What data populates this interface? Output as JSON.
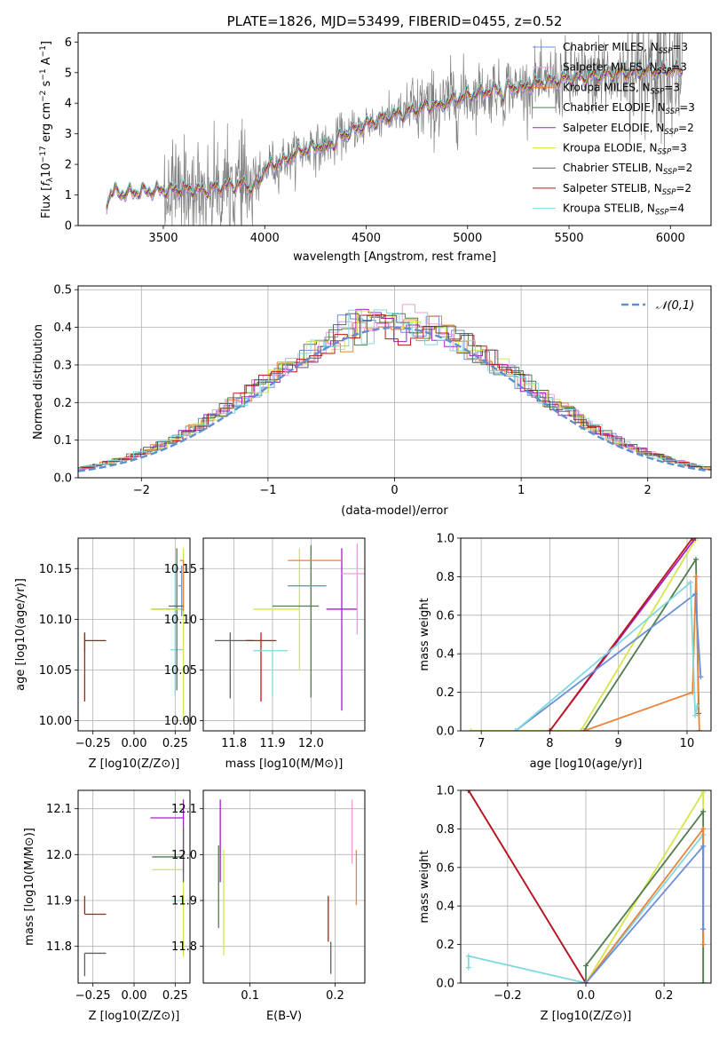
{
  "colors": {
    "Chabrier MILES": "#6a8fd8",
    "Salpeter MILES": "#e8a0e0",
    "Kroupa MILES": "#e8843a",
    "Chabrier ELODIE": "#4f7d4f",
    "Salpeter ELODIE": "#a020c0",
    "Kroupa ELODIE": "#d4e64a",
    "Chabrier STELIB": "#606060",
    "Salpeter STELIB": "#b81818",
    "Kroupa STELIB": "#7fd8e0"
  },
  "chart_data": [
    {
      "id": "spectrum",
      "type": "line",
      "title": "PLATE=1826, MJD=53499, FIBERID=0455, z=0.52",
      "xlabel": "wavelength [Angstrom, rest frame]",
      "ylabel": "Flux [f_λ 10^-17 erg cm^-2 s^-1 A^-1]",
      "xlim": [
        3080,
        6200
      ],
      "ylim": [
        0,
        6.3
      ],
      "xticks": [
        3500,
        4000,
        4500,
        5000,
        5500,
        6000
      ],
      "yticks": [
        0,
        1,
        2,
        3,
        4,
        5,
        6
      ],
      "grid": false,
      "legend_position": "top-right",
      "data_color": "#808080",
      "data_continuum": {
        "x": [
          3220,
          3240,
          3300,
          3400,
          3500,
          3600,
          3700,
          3800,
          3900,
          3950,
          4000,
          4050,
          4100,
          4200,
          4300,
          4400,
          4500,
          4600,
          4700,
          4800,
          4900,
          5000,
          5100,
          5200,
          5300,
          5400,
          5500,
          5600,
          5700,
          5800,
          5900,
          6000,
          6060
        ],
        "y": [
          0.65,
          1.12,
          1.05,
          1.12,
          1.15,
          1.2,
          1.15,
          1.3,
          1.35,
          1.4,
          1.85,
          2.0,
          2.2,
          2.5,
          2.65,
          3.0,
          3.3,
          3.55,
          3.7,
          3.9,
          4.05,
          4.25,
          4.4,
          4.5,
          4.6,
          4.7,
          4.8,
          4.85,
          4.95,
          5.0,
          5.05,
          5.1,
          5.1
        ]
      },
      "series": [
        {
          "name": "Chabrier MILES",
          "label_main": "Chabrier MILES, N",
          "label_sub": "SSP",
          "label_end": "=3"
        },
        {
          "name": "Salpeter MILES",
          "label_main": "Salpeter MILES, N",
          "label_sub": "SSP",
          "label_end": "=3"
        },
        {
          "name": "Kroupa MILES",
          "label_main": "Kroupa MILES, N",
          "label_sub": "SSP",
          "label_end": "=3"
        },
        {
          "name": "Chabrier ELODIE",
          "label_main": "Chabrier ELODIE, N",
          "label_sub": "SSP",
          "label_end": "=3"
        },
        {
          "name": "Salpeter ELODIE",
          "label_main": "Salpeter ELODIE, N",
          "label_sub": "SSP",
          "label_end": "=2"
        },
        {
          "name": "Kroupa ELODIE",
          "label_main": "Kroupa ELODIE, N",
          "label_sub": "SSP",
          "label_end": "=3"
        },
        {
          "name": "Chabrier STELIB",
          "label_main": "Chabrier STELIB, N",
          "label_sub": "SSP",
          "label_end": "=2"
        },
        {
          "name": "Salpeter STELIB",
          "label_main": "Salpeter STELIB, N",
          "label_sub": "SSP",
          "label_end": "=2"
        },
        {
          "name": "Kroupa STELIB",
          "label_main": "Kroupa STELIB, N",
          "label_sub": "SSP",
          "label_end": "=4"
        }
      ]
    },
    {
      "id": "residuals",
      "type": "step",
      "xlabel": "(data-model)/error",
      "ylabel": "Normed distribution",
      "xlim": [
        -2.5,
        2.5
      ],
      "ylim": [
        0,
        0.51
      ],
      "xticks": [
        -2,
        -1,
        0,
        1,
        2
      ],
      "yticks": [
        0.0,
        0.1,
        0.2,
        0.3,
        0.4,
        0.5
      ],
      "grid": true,
      "legend_position": "top-right",
      "reference": {
        "name": "𝒩(0,1)",
        "mean": 0,
        "sigma": 1,
        "color": "#5b8fd4"
      },
      "bin_width": 0.1
    },
    {
      "id": "age-vs-Z",
      "type": "errorbar",
      "xlabel": "Z [log10(Z/Z⊙)]",
      "ylabel": "age [log10(age/yr)]",
      "xlim": [
        -0.34,
        0.34
      ],
      "ylim": [
        9.99,
        10.18
      ],
      "xticks": [
        -0.25,
        0.0,
        0.25
      ],
      "yticks": [
        10.0,
        10.05,
        10.1,
        10.15
      ],
      "grid": true,
      "points": [
        {
          "s": "Chabrier STELIB",
          "x": -0.3,
          "y": 10.08,
          "xerr": [
            0.0,
            0.0
          ],
          "yerr": [
            0.012,
            0.006
          ]
        },
        {
          "s": "Salpeter STELIB",
          "x": -0.3,
          "y": 10.079,
          "xerr": [
            0.0,
            0.13
          ],
          "yerr": [
            0.06,
            0.008
          ]
        },
        {
          "s": "Kroupa STELIB",
          "x": 0.25,
          "y": 10.07,
          "xerr": [
            0.03,
            0.05
          ],
          "yerr": [
            0.045,
            0.085
          ]
        },
        {
          "s": "Chabrier ELODIE",
          "x": 0.26,
          "y": 10.11,
          "xerr": [
            0.15,
            0.04
          ],
          "yerr": [
            0.08,
            0.06
          ]
        },
        {
          "s": "Kroupa ELODIE",
          "x": 0.3,
          "y": 10.11,
          "xerr": [
            0.2,
            0.0
          ],
          "yerr": [
            0.11,
            0.06
          ]
        },
        {
          "s": "Chabrier MILES",
          "x": 0.29,
          "y": 10.133,
          "xerr": [
            0.02,
            0.0
          ],
          "yerr": [
            0.03,
            0.02
          ]
        },
        {
          "s": "Kroupa MILES",
          "x": 0.3,
          "y": 10.158,
          "xerr": [
            0.02,
            0.0
          ],
          "yerr": [
            0.05,
            0.0
          ]
        },
        {
          "s": "Chabrier STELIB",
          "x": 0.3,
          "y": 10.113,
          "xerr": [
            0.09,
            0.0
          ],
          "yerr": [
            0.0,
            0.0
          ]
        }
      ]
    },
    {
      "id": "age-vs-mass",
      "type": "errorbar",
      "xlabel": "mass [log10(M/M⊙)]",
      "ylabel": "",
      "xlim": [
        11.72,
        12.14
      ],
      "ylim": [
        9.99,
        10.18
      ],
      "xticks": [
        11.8,
        11.9,
        12.0
      ],
      "yticks": [
        10.0,
        10.05,
        10.1,
        10.15
      ],
      "grid": true,
      "points": [
        {
          "s": "Chabrier STELIB",
          "x": 11.79,
          "y": 10.079,
          "xerr": [
            0.04,
            0.06
          ],
          "yerr": [
            0.057,
            0.008
          ]
        },
        {
          "s": "Salpeter STELIB",
          "x": 11.87,
          "y": 10.079,
          "xerr": [
            0.04,
            0.04
          ],
          "yerr": [
            0.06,
            0.008
          ]
        },
        {
          "s": "Kroupa STELIB",
          "x": 11.9,
          "y": 10.069,
          "xerr": [
            0.05,
            0.04
          ],
          "yerr": [
            0.045,
            0.0
          ]
        },
        {
          "s": "Kroupa ELODIE",
          "x": 11.97,
          "y": 10.11,
          "xerr": [
            0.12,
            0.0
          ],
          "yerr": [
            0.06,
            0.06
          ]
        },
        {
          "s": "Chabrier ELODIE",
          "x": 12.0,
          "y": 10.113,
          "xerr": [
            0.1,
            0.02
          ],
          "yerr": [
            0.09,
            0.06
          ]
        },
        {
          "s": "Salpeter ELODIE",
          "x": 12.08,
          "y": 10.11,
          "xerr": [
            0.04,
            0.04
          ],
          "yerr": [
            0.1,
            0.06
          ]
        },
        {
          "s": "Chabrier MILES",
          "x": 11.99,
          "y": 10.133,
          "xerr": [
            0.05,
            0.05
          ],
          "yerr": [
            0.0,
            0.0
          ]
        },
        {
          "s": "Kroupa MILES",
          "x": 12.01,
          "y": 10.158,
          "xerr": [
            0.07,
            0.07
          ],
          "yerr": [
            0.0,
            0.0
          ]
        },
        {
          "s": "Salpeter MILES",
          "x": 12.12,
          "y": 10.145,
          "xerr": [
            0.04,
            0.04
          ],
          "yerr": [
            0.06,
            0.03
          ]
        }
      ]
    },
    {
      "id": "weight-vs-age",
      "type": "line",
      "xlabel": "age [log10(age/yr)]",
      "ylabel": "mass weight",
      "xlim": [
        6.7,
        10.35
      ],
      "ylim": [
        0,
        1.0
      ],
      "xticks": [
        7,
        8,
        9,
        10
      ],
      "yticks": [
        0.0,
        0.2,
        0.4,
        0.6,
        0.8,
        1.0
      ],
      "grid": true,
      "series": [
        {
          "s": "Kroupa ELODIE",
          "x": [
            6.85,
            8.45,
            10.12
          ],
          "y": [
            0.0,
            0.0,
            0.99
          ]
        },
        {
          "s": "Salpeter ELODIE",
          "x": [
            8.0,
            10.12
          ],
          "y": [
            0.0,
            1.0
          ]
        },
        {
          "s": "Salpeter STELIB",
          "x": [
            8.0,
            10.08
          ],
          "y": [
            0.0,
            1.0
          ]
        },
        {
          "s": "Chabrier ELODIE",
          "x": [
            8.5,
            10.13,
            10.17
          ],
          "y": [
            0.0,
            0.89,
            0.09
          ]
        },
        {
          "s": "Kroupa MILES",
          "x": [
            8.5,
            10.08,
            10.13,
            10.18
          ],
          "y": [
            0.0,
            0.2,
            0.8,
            0.0
          ]
        },
        {
          "s": "Chabrier MILES",
          "x": [
            7.5,
            10.12,
            10.2
          ],
          "y": [
            0.0,
            0.71,
            0.28
          ]
        },
        {
          "s": "Kroupa STELIB",
          "x": [
            7.5,
            10.05,
            10.12,
            10.15
          ],
          "y": [
            0.0,
            0.77,
            0.08,
            0.13
          ]
        }
      ]
    },
    {
      "id": "mass-vs-Z",
      "type": "errorbar",
      "xlabel": "Z [log10(Z/Z⊙)]",
      "ylabel": "mass [log10(M/M⊙)]",
      "xlim": [
        -0.34,
        0.34
      ],
      "ylim": [
        11.72,
        12.14
      ],
      "xticks": [
        -0.25,
        0.0,
        0.25
      ],
      "yticks": [
        11.8,
        11.9,
        12.0,
        12.1
      ],
      "grid": true,
      "points": [
        {
          "s": "Chabrier STELIB",
          "x": -0.3,
          "y": 11.785,
          "xerr": [
            0.0,
            0.13
          ],
          "yerr": [
            0.05,
            0.0
          ]
        },
        {
          "s": "Salpeter STELIB",
          "x": -0.3,
          "y": 11.87,
          "xerr": [
            0.0,
            0.13
          ],
          "yerr": [
            0.0,
            0.04
          ]
        },
        {
          "s": "Salpeter ELODIE",
          "x": 0.3,
          "y": 12.08,
          "xerr": [
            0.2,
            0.0
          ],
          "yerr": [
            0.12,
            0.04
          ]
        },
        {
          "s": "Chabrier ELODIE",
          "x": 0.26,
          "y": 11.995,
          "xerr": [
            0.15,
            0.04
          ],
          "yerr": [
            0.0,
            0.0
          ]
        },
        {
          "s": "Kroupa ELODIE",
          "x": 0.3,
          "y": 11.967,
          "xerr": [
            0.19,
            0.0
          ],
          "yerr": [
            0.19,
            0.0
          ]
        },
        {
          "s": "Kroupa STELIB",
          "x": 0.25,
          "y": 11.9,
          "xerr": [
            0.02,
            0.05
          ],
          "yerr": [
            0.0,
            0.0
          ]
        },
        {
          "s": "Chabrier STELIB",
          "x": 0.3,
          "y": 12.0,
          "xerr": [
            0.0,
            0.0
          ],
          "yerr": [
            0.06,
            0.06
          ]
        }
      ]
    },
    {
      "id": "mass-vs-EBV",
      "type": "errorbar",
      "xlabel": "E(B-V)",
      "ylabel": "",
      "xlim": [
        0.045,
        0.235
      ],
      "ylim": [
        11.72,
        12.14
      ],
      "xticks": [
        0.1,
        0.2
      ],
      "yticks": [
        11.8,
        11.9,
        12.0,
        12.1
      ],
      "grid": true,
      "points": [
        {
          "s": "Chabrier ELODIE",
          "x": 0.063,
          "y": 11.93,
          "xerr": [
            0.0,
            0.0
          ],
          "yerr": [
            0.09,
            0.09
          ]
        },
        {
          "s": "Salpeter ELODIE",
          "x": 0.065,
          "y": 12.04,
          "xerr": [
            0.0,
            0.0
          ],
          "yerr": [
            0.1,
            0.08
          ]
        },
        {
          "s": "Kroupa ELODIE",
          "x": 0.069,
          "y": 11.9,
          "xerr": [
            0.0,
            0.0
          ],
          "yerr": [
            0.12,
            0.11
          ]
        },
        {
          "s": "Salpeter STELIB",
          "x": 0.192,
          "y": 11.87,
          "xerr": [
            0.0,
            0.0
          ],
          "yerr": [
            0.06,
            0.04
          ]
        },
        {
          "s": "Chabrier STELIB",
          "x": 0.195,
          "y": 11.79,
          "xerr": [
            0.0,
            0.0
          ],
          "yerr": [
            0.05,
            0.02
          ]
        },
        {
          "s": "Salpeter MILES",
          "x": 0.22,
          "y": 12.05,
          "xerr": [
            0.0,
            0.0
          ],
          "yerr": [
            0.07,
            0.07
          ]
        },
        {
          "s": "Kroupa MILES",
          "x": 0.225,
          "y": 11.95,
          "xerr": [
            0.0,
            0.0
          ],
          "yerr": [
            0.06,
            0.06
          ]
        }
      ]
    },
    {
      "id": "weight-vs-Z",
      "type": "line",
      "xlabel": "Z [log10(Z/Z⊙)]",
      "ylabel": "mass weight",
      "xlim": [
        -0.32,
        0.32
      ],
      "ylim": [
        0,
        1.0
      ],
      "xticks": [
        -0.2,
        0.0,
        0.2
      ],
      "yticks": [
        0.0,
        0.2,
        0.4,
        0.6,
        0.8,
        1.0
      ],
      "grid": true,
      "series": [
        {
          "s": "Salpeter ELODIE",
          "x": [
            -0.3,
            0.0
          ],
          "y": [
            1.0,
            0.0
          ]
        },
        {
          "s": "Salpeter STELIB",
          "x": [
            -0.3,
            0.0
          ],
          "y": [
            1.0,
            0.0
          ]
        },
        {
          "s": "Kroupa STELIB",
          "x": [
            -0.3,
            -0.3,
            0.0,
            0.3,
            0.3
          ],
          "y": [
            0.08,
            0.14,
            0.0,
            0.77,
            0.0
          ]
        },
        {
          "s": "Kroupa ELODIE",
          "x": [
            0.0,
            0.3,
            0.3
          ],
          "y": [
            0.0,
            0.99,
            0.0
          ]
        },
        {
          "s": "Chabrier ELODIE",
          "x": [
            0.0,
            0.0,
            0.3,
            0.3
          ],
          "y": [
            0.0,
            0.09,
            0.89,
            0.0
          ]
        },
        {
          "s": "Kroupa MILES",
          "x": [
            0.0,
            0.3,
            0.3
          ],
          "y": [
            0.0,
            0.8,
            0.2
          ]
        },
        {
          "s": "Chabrier MILES",
          "x": [
            0.0,
            0.3,
            0.3
          ],
          "y": [
            0.0,
            0.71,
            0.28
          ]
        }
      ]
    }
  ]
}
